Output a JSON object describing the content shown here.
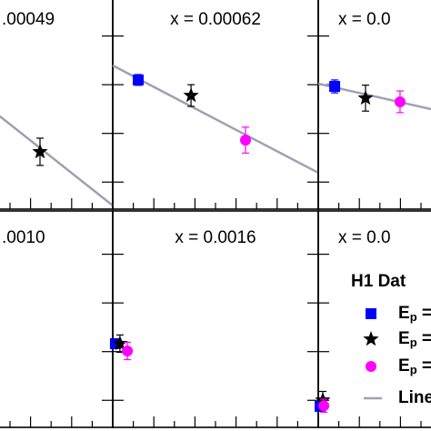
{
  "chart_data": [
    {
      "type": "scatter",
      "title": ".00049",
      "xlim": [
        0,
        1
      ],
      "ylim": [
        0,
        1
      ],
      "xticks": [
        0.1,
        0.2,
        0.3,
        0.4,
        0.5,
        0.6,
        0.7,
        0.8,
        0.9
      ],
      "yticks": [
        0.125,
        0.35,
        0.575,
        0.8
      ],
      "series": [
        {
          "color": "#000000",
          "marker": "star",
          "x": [
            0.646
          ],
          "values": [
            0.265
          ],
          "errors": [
            0.063
          ]
        }
      ],
      "line": {
        "color": "#a0a0b4",
        "x": [
          0.451,
          1
        ],
        "values": [
          0.429,
          0.017
        ]
      }
    },
    {
      "type": "scatter",
      "title": "x =  0.00062",
      "xlim": [
        0,
        1
      ],
      "ylim": [
        0,
        1
      ],
      "xticks": [
        0.1,
        0.2,
        0.3,
        0.4,
        0.5,
        0.6,
        0.7,
        0.8,
        0.9
      ],
      "yticks": [
        0.125,
        0.35,
        0.575,
        0.8
      ],
      "series": [
        {
          "color": "#0000ff",
          "marker": "square",
          "x": [
            0.124
          ],
          "values": [
            0.597
          ],
          "errors": [
            0.025
          ]
        },
        {
          "color": "#000000",
          "marker": "star",
          "x": [
            0.381
          ],
          "values": [
            0.525
          ],
          "errors": [
            0.05
          ]
        },
        {
          "color": "#ff00ff",
          "marker": "circle",
          "x": [
            0.646
          ],
          "values": [
            0.319
          ],
          "errors": [
            0.06
          ]
        }
      ],
      "line": {
        "color": "#a0a0b4",
        "x": [
          0,
          1
        ],
        "values": [
          0.664,
          0.168
        ]
      }
    },
    {
      "type": "scatter",
      "title": "x =  0.0",
      "xlim": [
        0,
        1
      ],
      "ylim": [
        0,
        1
      ],
      "xticks": [
        0.1,
        0.2,
        0.3,
        0.4,
        0.5,
        0.6,
        0.7,
        0.8,
        0.9
      ],
      "yticks": [
        0.125,
        0.35,
        0.575,
        0.8
      ],
      "series": [
        {
          "color": "#0000ff",
          "marker": "square",
          "x": [
            0.08
          ],
          "values": [
            0.567
          ],
          "errors": [
            0.03
          ]
        },
        {
          "color": "#000000",
          "marker": "star",
          "x": [
            0.23
          ],
          "values": [
            0.513
          ],
          "errors": [
            0.06
          ]
        },
        {
          "color": "#ff00ff",
          "marker": "circle",
          "x": [
            0.398
          ],
          "values": [
            0.496
          ],
          "errors": [
            0.05
          ]
        }
      ],
      "line": {
        "color": "#a0a0b4",
        "x": [
          0,
          0.549
        ],
        "values": [
          0.58,
          0.462
        ]
      }
    },
    {
      "type": "scatter",
      "title": ".0010",
      "xlim": [
        0,
        1
      ],
      "ylim": [
        0,
        1
      ],
      "xticks": [
        0.1,
        0.2,
        0.3,
        0.4,
        0.5,
        0.6,
        0.7,
        0.8,
        0.9
      ],
      "yticks": [
        0.125,
        0.35,
        0.575,
        0.8
      ],
      "series": []
    },
    {
      "type": "scatter",
      "title": "x =  0.0016",
      "xlim": [
        0,
        1
      ],
      "ylim": [
        0,
        1
      ],
      "xticks": [
        0.1,
        0.2,
        0.3,
        0.4,
        0.5,
        0.6,
        0.7,
        0.8,
        0.9
      ],
      "yticks": [
        0.125,
        0.35,
        0.575,
        0.8
      ],
      "series": [
        {
          "color": "#0000ff",
          "marker": "square",
          "x": [
            0.013
          ],
          "values": [
            0.387
          ],
          "errors": [
            0.02
          ]
        },
        {
          "color": "#000000",
          "marker": "star",
          "x": [
            0.035
          ],
          "values": [
            0.387
          ],
          "errors": [
            0.04
          ]
        },
        {
          "color": "#ff00ff",
          "marker": "circle",
          "x": [
            0.071
          ],
          "values": [
            0.353
          ],
          "errors": [
            0.04
          ]
        }
      ]
    },
    {
      "type": "scatter",
      "title": "x =  0.0",
      "xlim": [
        0,
        1
      ],
      "ylim": [
        0,
        1
      ],
      "xticks": [
        0.1,
        0.2,
        0.3,
        0.4,
        0.5,
        0.6,
        0.7,
        0.8,
        0.9
      ],
      "yticks": [
        0.125,
        0.35,
        0.575,
        0.8
      ],
      "series": [
        {
          "color": "#0000ff",
          "marker": "square",
          "x": [
            0.009
          ],
          "values": [
            0.097
          ],
          "errors": [
            0.02
          ]
        },
        {
          "color": "#000000",
          "marker": "star",
          "x": [
            0.022
          ],
          "values": [
            0.126
          ],
          "errors": [
            0.04
          ]
        },
        {
          "color": "#ff00ff",
          "marker": "circle",
          "x": [
            0.027
          ],
          "values": [
            0.1
          ],
          "errors": [
            0.03
          ]
        }
      ],
      "legend": {
        "title": "H1 Dat",
        "entries": [
          {
            "name": "Ep =",
            "color": "#0000ff",
            "marker": "square"
          },
          {
            "name": "Ep =",
            "color": "#000000",
            "marker": "star"
          },
          {
            "name": "Ep =",
            "color": "#ff00ff",
            "marker": "circle"
          },
          {
            "name": "Line",
            "color": "#a0a0b4",
            "marker": "line"
          }
        ]
      }
    }
  ]
}
